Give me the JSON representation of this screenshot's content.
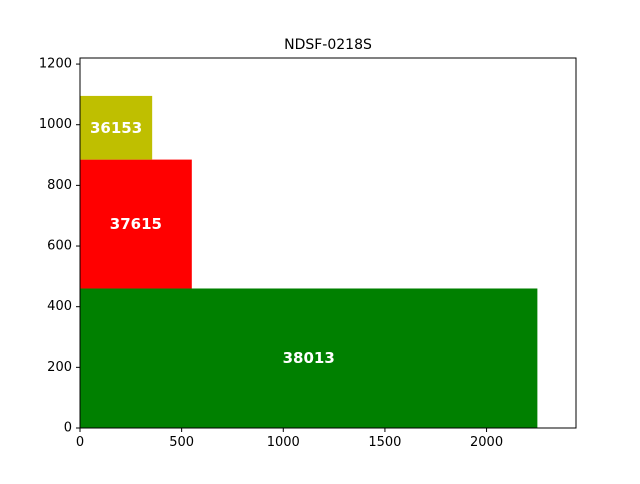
{
  "chart_data": {
    "type": "bar",
    "title": "NDSF-0218S",
    "xlabel": "",
    "ylabel": "",
    "xlim": [
      0,
      2440
    ],
    "ylim": [
      0,
      1220
    ],
    "grid": false,
    "x_ticks": [
      0,
      500,
      1000,
      1500,
      2000
    ],
    "y_ticks": [
      0,
      200,
      400,
      600,
      800,
      1000,
      1200
    ],
    "rectangles": [
      {
        "label": "38013",
        "x": 0,
        "y": 0,
        "width": 2250,
        "height": 460,
        "color": "#008000"
      },
      {
        "label": "37615",
        "x": 0,
        "y": 460,
        "width": 550,
        "height": 425,
        "color": "#ff0000"
      },
      {
        "label": "36153",
        "x": 0,
        "y": 885,
        "width": 355,
        "height": 210,
        "color": "#bfbf00"
      }
    ]
  }
}
